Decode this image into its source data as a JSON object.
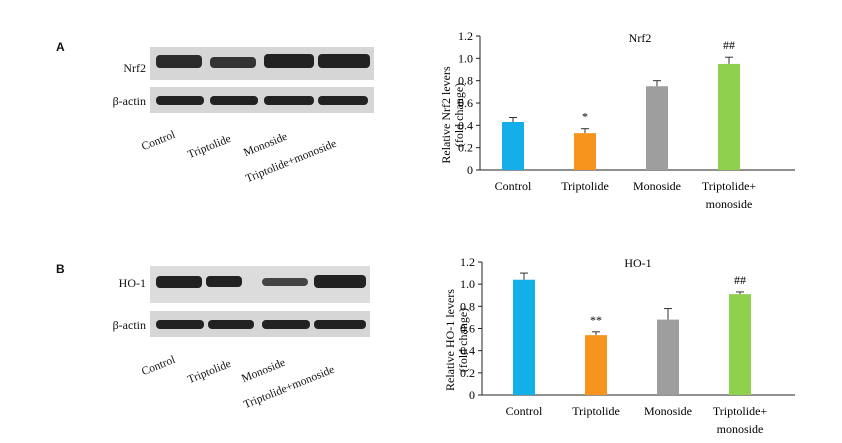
{
  "panels": [
    {
      "letter": "A",
      "blot": {
        "rows": [
          "Nrf2",
          "β-actin"
        ],
        "lanes": [
          "Control",
          "Triptolide",
          "Monoside",
          "Triptolide+monoside"
        ]
      }
    },
    {
      "letter": "B",
      "blot": {
        "rows": [
          "HO-1",
          "β-actin"
        ],
        "lanes": [
          "Control",
          "Triptolide",
          "Monoside",
          "Triptolide+monoside"
        ]
      }
    }
  ],
  "colors": {
    "control": "#14aee8",
    "triptolide": "#f7941d",
    "monoside": "#9e9e9e",
    "combo": "#8fd14f"
  },
  "chart_data": [
    {
      "type": "bar",
      "title": "Nrf2",
      "ylabel": "Relative Nrf2 levers (fold change)",
      "ylabel_lines": [
        "Relative Nrf2 levers",
        "(fold change)"
      ],
      "categories": [
        "Control",
        "Triptolide",
        "Monoside",
        "Triptolide+ monoside"
      ],
      "category_lines": [
        [
          "Control"
        ],
        [
          "Triptolide"
        ],
        [
          "Monoside"
        ],
        [
          "Triptolide+",
          "monoside"
        ]
      ],
      "values": [
        0.43,
        0.33,
        0.75,
        0.95
      ],
      "errors": [
        0.04,
        0.04,
        0.05,
        0.06
      ],
      "annotations": [
        "",
        "*",
        "",
        "##"
      ],
      "ylim": [
        0,
        1.2
      ],
      "yticks": [
        0,
        0.2,
        0.4,
        0.6,
        0.8,
        1.0,
        1.2
      ],
      "ytick_labels": [
        "0",
        "0.2",
        "0.4",
        "0.6",
        "0.8",
        "1.0",
        "1.2"
      ],
      "grid": false,
      "legend": "none"
    },
    {
      "type": "bar",
      "title": "HO-1",
      "ylabel": "Relative HO-1 levers (fold change)",
      "ylabel_lines": [
        "Relative HO-1 levers",
        "(fold change)"
      ],
      "categories": [
        "Control",
        "Triptolide",
        "Monoside",
        "Triptolide+ monoside"
      ],
      "category_lines": [
        [
          "Control"
        ],
        [
          "Triptolide"
        ],
        [
          "Monoside"
        ],
        [
          "Triptolide+",
          "monoside"
        ]
      ],
      "values": [
        1.04,
        0.54,
        0.68,
        0.91
      ],
      "errors": [
        0.06,
        0.03,
        0.1,
        0.02
      ],
      "annotations": [
        "",
        "**",
        "",
        "##"
      ],
      "ylim": [
        0,
        1.2
      ],
      "yticks": [
        0,
        0.2,
        0.4,
        0.6,
        0.8,
        1.0,
        1.2
      ],
      "ytick_labels": [
        "0",
        "0.2",
        "0.4",
        "0.6",
        "0.8",
        "1.0",
        "1.2"
      ],
      "grid": false,
      "legend": "none"
    }
  ]
}
